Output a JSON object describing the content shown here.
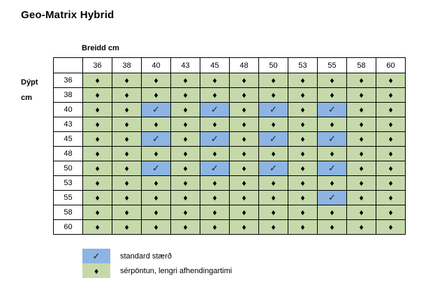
{
  "title": "Geo-Matrix Hybrid",
  "axis": {
    "col_label": "Breidd cm",
    "row_label": "Dýpt\ncm"
  },
  "symbols": {
    "d": "♦",
    "c": "✓"
  },
  "colors": {
    "standard-bg": "#8db4e2",
    "special-bg": "#c6d9ab",
    "grid": "#000000",
    "symbol": "#000000",
    "text": "#000000"
  },
  "chart_data": {
    "type": "table",
    "title": "Geo-Matrix Hybrid",
    "col_axis_label": "Breidd cm",
    "row_axis_label": "Dýpt cm",
    "columns": [
      "36",
      "38",
      "40",
      "43",
      "45",
      "48",
      "50",
      "53",
      "55",
      "58",
      "60"
    ],
    "rows": [
      "36",
      "38",
      "40",
      "43",
      "45",
      "48",
      "50",
      "53",
      "55",
      "58",
      "60"
    ],
    "cell_codes": {
      "d": "sérpöntun (diamond)",
      "c": "standard (check)"
    },
    "cells": [
      [
        "d",
        "d",
        "d",
        "d",
        "d",
        "d",
        "d",
        "d",
        "d",
        "d",
        "d"
      ],
      [
        "d",
        "d",
        "d",
        "d",
        "d",
        "d",
        "d",
        "d",
        "d",
        "d",
        "d"
      ],
      [
        "d",
        "d",
        "c",
        "d",
        "c",
        "d",
        "c",
        "d",
        "c",
        "d",
        "d"
      ],
      [
        "d",
        "d",
        "d",
        "d",
        "d",
        "d",
        "d",
        "d",
        "d",
        "d",
        "d"
      ],
      [
        "d",
        "d",
        "c",
        "d",
        "c",
        "d",
        "c",
        "d",
        "c",
        "d",
        "d"
      ],
      [
        "d",
        "d",
        "d",
        "d",
        "d",
        "d",
        "d",
        "d",
        "d",
        "d",
        "d"
      ],
      [
        "d",
        "d",
        "c",
        "d",
        "c",
        "d",
        "c",
        "d",
        "c",
        "d",
        "d"
      ],
      [
        "d",
        "d",
        "d",
        "d",
        "d",
        "d",
        "d",
        "d",
        "d",
        "d",
        "d"
      ],
      [
        "d",
        "d",
        "d",
        "d",
        "d",
        "d",
        "d",
        "d",
        "c",
        "d",
        "d"
      ],
      [
        "d",
        "d",
        "d",
        "d",
        "d",
        "d",
        "d",
        "d",
        "d",
        "d",
        "d"
      ],
      [
        "d",
        "d",
        "d",
        "d",
        "d",
        "d",
        "d",
        "d",
        "d",
        "d",
        "d"
      ]
    ],
    "legend": [
      {
        "code": "c",
        "color": "#8db4e2",
        "label": "standard stærð"
      },
      {
        "code": "d",
        "color": "#c6d9ab",
        "label": "sérpöntun, lengri afhendingartimi"
      }
    ]
  }
}
